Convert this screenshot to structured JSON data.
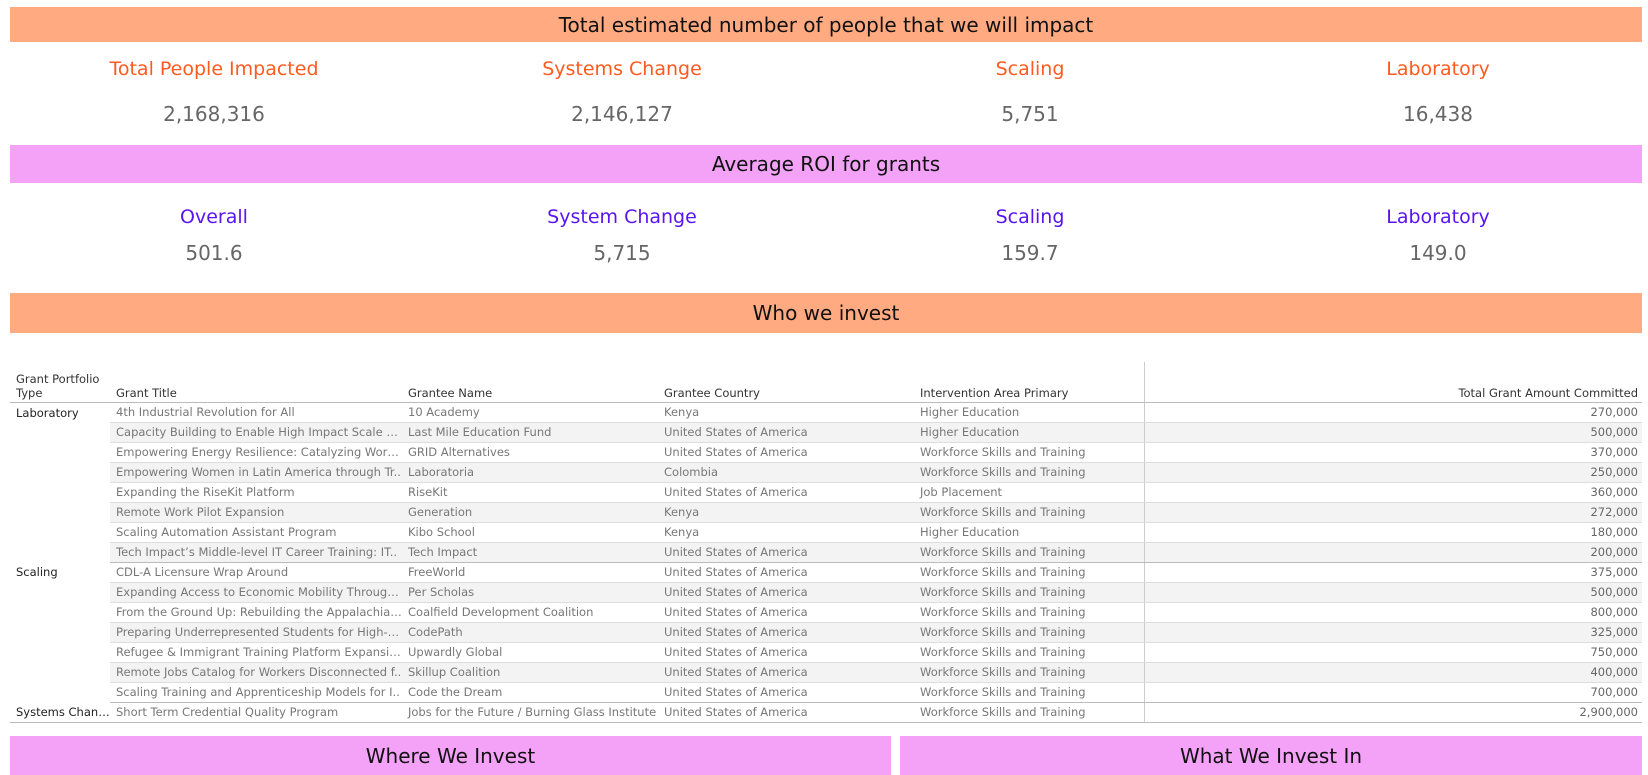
{
  "sections": {
    "impact_title": "Total estimated number of people that we will impact",
    "roi_title": "Average ROI for grants",
    "invest_title": "Who we invest",
    "where_title": "Where We Invest",
    "what_title": "What We Invest In"
  },
  "impact": [
    {
      "label": "Total People Impacted",
      "value": "2,168,316"
    },
    {
      "label": "Systems Change",
      "value": "2,146,127"
    },
    {
      "label": "Scaling",
      "value": "5,751"
    },
    {
      "label": "Laboratory",
      "value": "16,438"
    }
  ],
  "roi": [
    {
      "label": "Overall",
      "value": "501.6"
    },
    {
      "label": "System Change",
      "value": "5,715"
    },
    {
      "label": "Scaling",
      "value": "159.7"
    },
    {
      "label": "Laboratory",
      "value": "149.0"
    }
  ],
  "table": {
    "headers": {
      "type": "Grant Portfolio Type",
      "title": "Grant Title",
      "grantee": "Grantee Name",
      "country": "Grantee Country",
      "area": "Intervention Area Primary",
      "amount": "Total Grant Amount Committed"
    },
    "groups": [
      {
        "type": "Laboratory",
        "rows": [
          {
            "title": "4th Industrial Revolution for All",
            "grantee": "10 Academy",
            "country": "Kenya",
            "area": "Higher Education",
            "amount": "270,000"
          },
          {
            "title": "Capacity Building to Enable High Impact Scale of ..",
            "grantee": "Last Mile Education Fund",
            "country": "United States of America",
            "area": "Higher Education",
            "amount": "500,000"
          },
          {
            "title": "Empowering Energy Resilience: Catalyzing Workf..",
            "grantee": "GRID Alternatives",
            "country": "United States of America",
            "area": "Workforce Skills and Training",
            "amount": "370,000"
          },
          {
            "title": "Empowering Women in Latin America through Tr..",
            "grantee": "Laboratoria",
            "country": "Colombia",
            "area": "Workforce Skills and Training",
            "amount": "250,000"
          },
          {
            "title": "Expanding the RiseKit Platform",
            "grantee": "RiseKit",
            "country": "United States of America",
            "area": "Job Placement",
            "amount": "360,000"
          },
          {
            "title": "Remote Work Pilot Expansion",
            "grantee": "Generation",
            "country": "Kenya",
            "area": "Workforce Skills and Training",
            "amount": "272,000"
          },
          {
            "title": "Scaling Automation Assistant Program",
            "grantee": "Kibo School",
            "country": "Kenya",
            "area": "Higher Education",
            "amount": "180,000"
          },
          {
            "title": "Tech Impact’s Middle-level IT Career Training: IT..",
            "grantee": "Tech Impact",
            "country": "United States of America",
            "area": "Workforce Skills and Training",
            "amount": "200,000"
          }
        ]
      },
      {
        "type": "Scaling",
        "rows": [
          {
            "title": "CDL-A Licensure Wrap Around",
            "grantee": "FreeWorld",
            "country": "United States of America",
            "area": "Workforce Skills and Training",
            "amount": "375,000"
          },
          {
            "title": "Expanding Access to Economic Mobility Through ..",
            "grantee": "Per Scholas",
            "country": "United States of America",
            "area": "Workforce Skills and Training",
            "amount": "500,000"
          },
          {
            "title": "From the Ground Up: Rebuilding the Appalachian ..",
            "grantee": "Coalfield Development Coalition",
            "country": "United States of America",
            "area": "Workforce Skills and Training",
            "amount": "800,000"
          },
          {
            "title": "Preparing Underrepresented Students for High-E..",
            "grantee": "CodePath",
            "country": "United States of America",
            "area": "Workforce Skills and Training",
            "amount": "325,000"
          },
          {
            "title": "Refugee & Immigrant Training Platform Expansion",
            "grantee": "Upwardly Global",
            "country": "United States of America",
            "area": "Workforce Skills and Training",
            "amount": "750,000"
          },
          {
            "title": "Remote Jobs Catalog for Workers Disconnected f..",
            "grantee": "Skillup Coalition",
            "country": "United States of America",
            "area": "Workforce Skills and Training",
            "amount": "400,000"
          },
          {
            "title": "Scaling Training and Apprenticeship Models for I..",
            "grantee": "Code the Dream",
            "country": "United States of America",
            "area": "Workforce Skills and Training",
            "amount": "700,000"
          }
        ]
      },
      {
        "type": "Systems Change",
        "rows": [
          {
            "title": "Short Term Credential Quality Program",
            "grantee": "Jobs for the Future / Burning Glass Institute",
            "country": "United States of America",
            "area": "Workforce Skills and Training",
            "amount": "2,900,000"
          }
        ]
      }
    ]
  }
}
